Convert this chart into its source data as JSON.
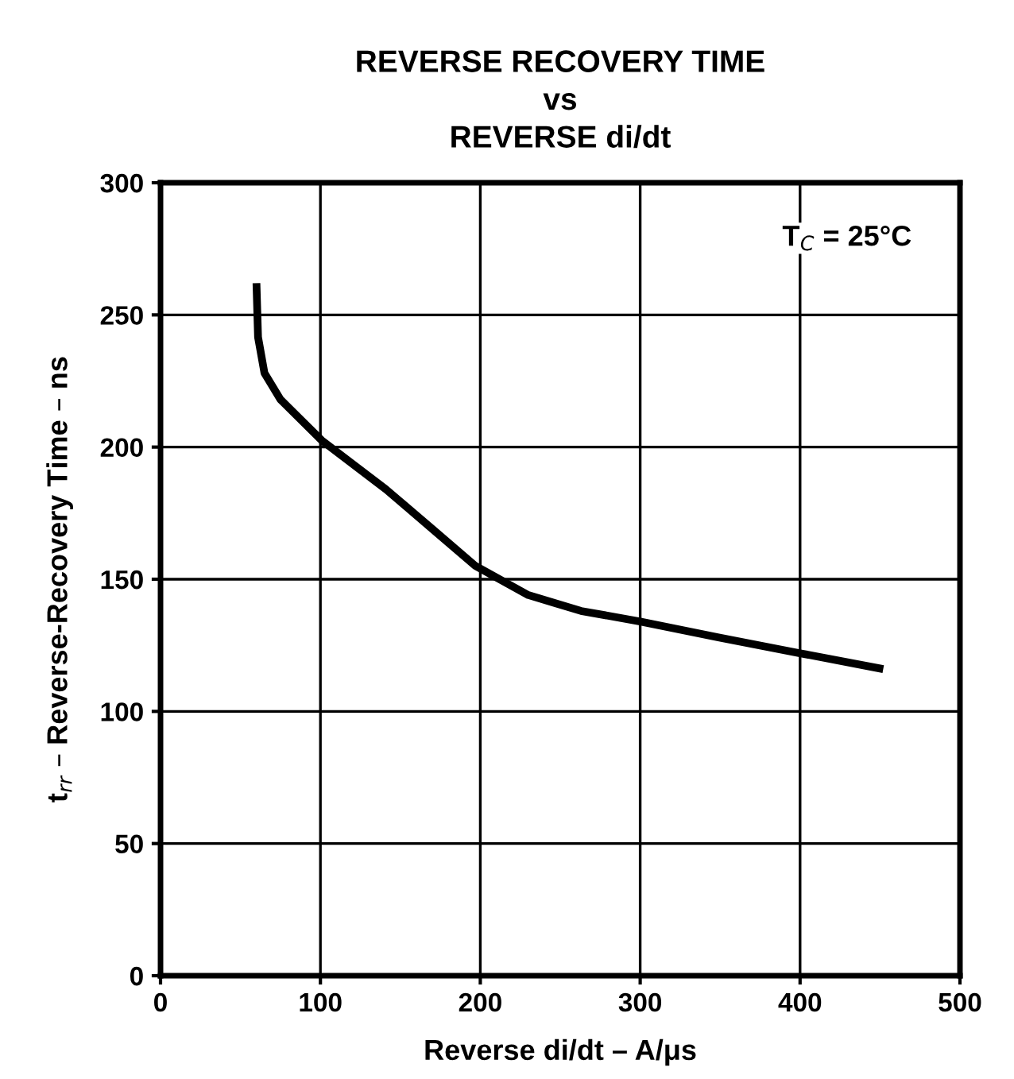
{
  "chart_data": {
    "type": "line",
    "title": "REVERSE RECOVERY TIME\nvs\nREVERSE di/dt",
    "xlabel": "Reverse di/dt – A/μs",
    "ylabel": "t$_{rr}$ – Reverse-Recovery Time – ns",
    "x": [
      60,
      61,
      65,
      75,
      100.7,
      141,
      170,
      197,
      230,
      263,
      300,
      349,
      400,
      452
    ],
    "series": [
      {
        "color": "#000000",
        "values": [
          262,
          241.6,
          228,
          218,
          202.6,
          184,
          169,
          155,
          144,
          138,
          134,
          128,
          122,
          116
        ]
      }
    ],
    "xlim": [
      0,
      500
    ],
    "ylim": [
      0,
      300
    ],
    "xticks": [
      0,
      100,
      200,
      300,
      400,
      500
    ],
    "yticks": [
      0,
      50,
      100,
      150,
      200,
      250,
      300
    ],
    "grid": true,
    "line_style": "solid",
    "marker": "none",
    "annotations": [
      "T$_{C}$ = 25°C"
    ]
  }
}
